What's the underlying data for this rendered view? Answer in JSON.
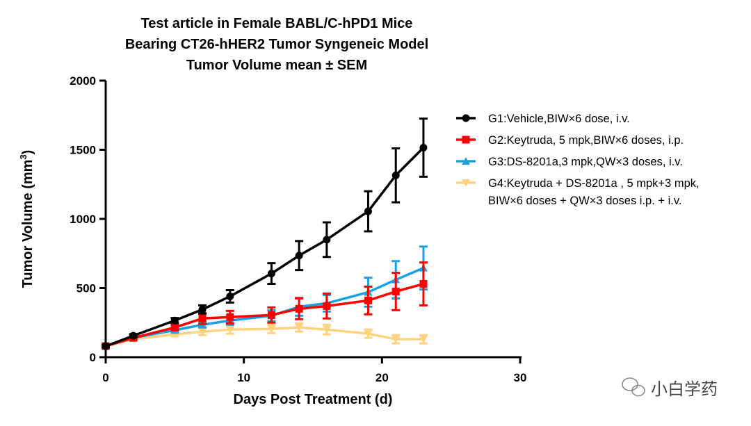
{
  "chart_data": {
    "type": "line",
    "title": [
      "Test article in Female BABL/C-hPD1 Mice",
      "Bearing CT26-hHER2 Tumor Syngeneic Model",
      "Tumor Volume mean ± SEM"
    ],
    "xlabel": "Days Post Treatment (d)",
    "ylabel": "Tumor Volume (mm",
    "ylabel_sup": "3",
    "ylabel_end": ")",
    "xlim": [
      0,
      30
    ],
    "ylim": [
      0,
      2000
    ],
    "xticks": [
      0,
      10,
      20,
      30
    ],
    "yticks": [
      0,
      500,
      1000,
      1500,
      2000
    ],
    "grid": false,
    "legend_position": "right",
    "x": [
      0,
      2,
      5,
      7,
      9,
      12,
      14,
      16,
      19,
      21,
      23
    ],
    "series": [
      {
        "name": "G1:Vehicle,BIW×6 dose, i.v.",
        "color": "#000000",
        "marker": "circle",
        "values": [
          80,
          155,
          265,
          345,
          440,
          605,
          735,
          850,
          1055,
          1315,
          1515
        ],
        "sem": [
          10,
          12,
          18,
          30,
          45,
          75,
          105,
          125,
          145,
          195,
          210
        ]
      },
      {
        "name": "G2:Keytruda, 5 mpk,BIW×6 doses, i.p.",
        "color": "#ff0000",
        "marker": "square",
        "values": [
          80,
          140,
          215,
          280,
          290,
          305,
          350,
          370,
          410,
          475,
          530
        ],
        "sem": [
          10,
          12,
          20,
          40,
          45,
          55,
          75,
          90,
          100,
          135,
          155
        ]
      },
      {
        "name": "G3:DS-8201a,3 mpk,QW×3 doses, i.v.",
        "color": "#1ba1e2",
        "marker": "triangle-up",
        "values": [
          80,
          140,
          195,
          235,
          265,
          300,
          365,
          390,
          470,
          560,
          645
        ],
        "sem": [
          10,
          12,
          15,
          20,
          30,
          40,
          65,
          60,
          105,
          135,
          155
        ]
      },
      {
        "name": "G4:Keytruda + DS-8201a , 5 mpk+3 mpk,\nBIW×6 doses + QW×3 doses i.p. + i.v.",
        "name_lines": [
          "G4:Keytruda + DS-8201a , 5 mpk+3 mpk,",
          "BIW×6 doses + QW×3 doses i.p. + i.v."
        ],
        "color": "#ffd27f",
        "marker": "triangle-down",
        "values": [
          80,
          130,
          165,
          185,
          200,
          205,
          215,
          200,
          170,
          130,
          130
        ],
        "sem": [
          8,
          10,
          15,
          25,
          30,
          30,
          30,
          35,
          30,
          30,
          30
        ]
      }
    ]
  },
  "watermark": {
    "text": "小白学药",
    "icon": "wechat-icon"
  }
}
